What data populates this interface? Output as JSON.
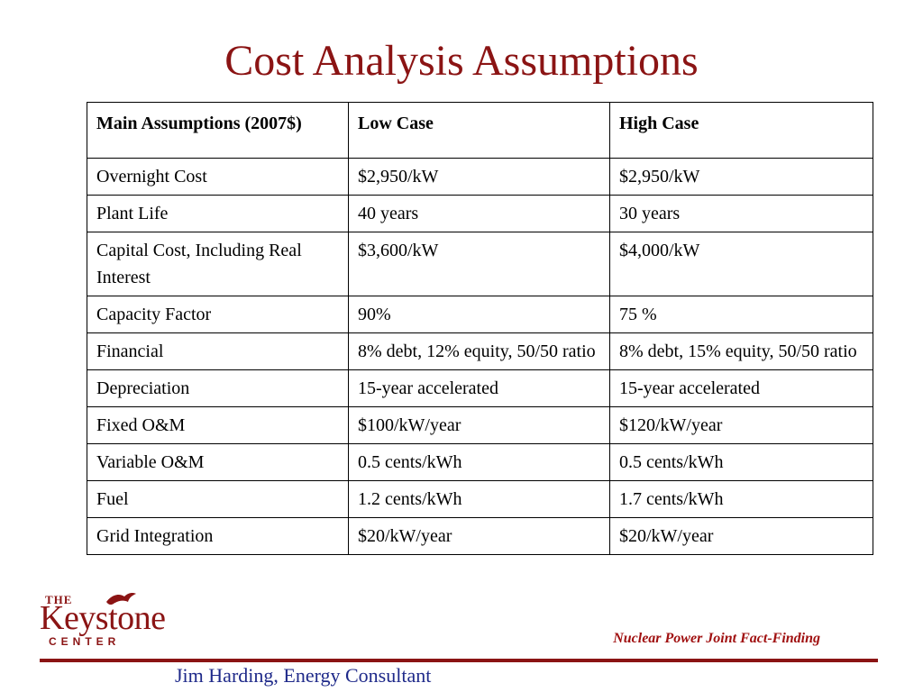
{
  "title": "Cost Analysis Assumptions",
  "table": {
    "headers": [
      "Main Assumptions (2007$)",
      "Low Case",
      "High Case"
    ],
    "rows": [
      [
        "Overnight Cost",
        "$2,950/kW",
        "$2,950/kW"
      ],
      [
        "Plant Life",
        "40 years",
        "30 years"
      ],
      [
        "Capital Cost, Including Real Interest",
        "$3,600/kW",
        "$4,000/kW"
      ],
      [
        "Capacity Factor",
        "90%",
        "75 %"
      ],
      [
        "Financial",
        "8% debt, 12% equity, 50/50 ratio",
        "8% debt, 15% equity, 50/50 ratio"
      ],
      [
        "Depreciation",
        "15-year accelerated",
        "15-year accelerated"
      ],
      [
        "Fixed O&M",
        "$100/kW/year",
        "$120/kW/year"
      ],
      [
        "Variable O&M",
        "0.5 cents/kWh",
        "0.5 cents/kWh"
      ],
      [
        "Fuel",
        "1.2 cents/kWh",
        "1.7 cents/kWh"
      ],
      [
        "Grid Integration",
        "$20/kW/year",
        "$20/kW/year"
      ]
    ]
  },
  "logo": {
    "the": "THE",
    "name": "Keystone",
    "center": "CENTER",
    "icon": "bird-icon"
  },
  "footer": {
    "project": "Nuclear Power Joint Fact-Finding",
    "author": "Jim Harding, Energy Consultant"
  },
  "colors": {
    "title": "#8b1414",
    "brand": "#8b1414",
    "author": "#1f2a8a"
  }
}
